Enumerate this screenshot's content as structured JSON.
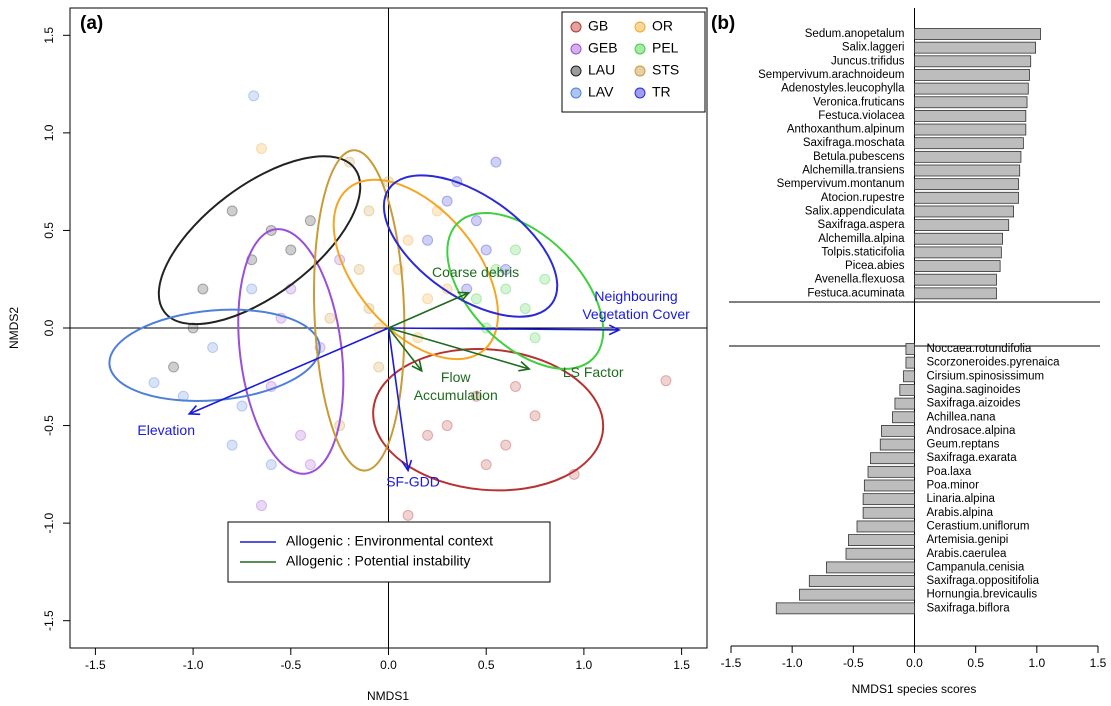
{
  "chart_data": [
    {
      "type": "scatter",
      "panel": "(a)",
      "x_label": "NMDS1",
      "y_label": "NMDS2",
      "xlim": [
        -1.63,
        1.63
      ],
      "ylim": [
        -1.64,
        1.64
      ],
      "xticks": [
        -1.5,
        {
          "value": -1,
          "label": "-1.0"
        },
        -0.5,
        {
          "value": 0,
          "label": "0.0"
        },
        0.5,
        {
          "value": 1,
          "label": "1.0"
        },
        1.5
      ],
      "yticks": [
        -1.5,
        {
          "value": -1,
          "label": "-1.0"
        },
        -0.5,
        {
          "value": 0,
          "label": "0.0"
        },
        0.5,
        {
          "value": 1,
          "label": "1.0"
        },
        1.5
      ],
      "series": [
        {
          "name": "GB",
          "color": "#b83232",
          "x": [
            0.3,
            0.45,
            0.6,
            0.75,
            0.5,
            0.2,
            0.95,
            0.65,
            1.42,
            0.1
          ],
          "y": [
            -0.5,
            -0.35,
            -0.6,
            -0.45,
            -0.7,
            -0.55,
            -0.75,
            -0.3,
            -0.27,
            -0.96
          ],
          "ellipse": {
            "cx": 0.51,
            "cy": -0.47,
            "rx": 0.59,
            "ry": 0.36,
            "angle": -5
          }
        },
        {
          "name": "GEB",
          "color": "#9b4fd6",
          "x": [
            -0.5,
            -0.35,
            -0.6,
            -0.45,
            -0.25,
            -0.55,
            -0.4,
            -0.65
          ],
          "y": [
            0.2,
            -0.1,
            -0.3,
            -0.55,
            0.35,
            0.05,
            -0.7,
            -0.91
          ],
          "ellipse": {
            "cx": -0.5,
            "cy": -0.12,
            "rx": 0.63,
            "ry": 0.26,
            "angle": 97
          }
        },
        {
          "name": "LAU",
          "color": "#222222",
          "x": [
            -0.8,
            -0.6,
            -0.4,
            -0.95,
            -0.7,
            -1.0,
            -0.5,
            -1.1
          ],
          "y": [
            0.6,
            0.5,
            0.55,
            0.2,
            0.35,
            0.0,
            0.4,
            -0.2
          ],
          "ellipse": {
            "cx": -0.66,
            "cy": 0.45,
            "rx": 0.61,
            "ry": 0.28,
            "angle": 37
          }
        },
        {
          "name": "LAV",
          "color": "#4f7fd9",
          "x": [
            -1.2,
            -0.9,
            -0.75,
            -1.05,
            -0.7,
            -0.6,
            -0.8,
            -0.69
          ],
          "y": [
            -0.28,
            -0.1,
            -0.4,
            -0.35,
            0.2,
            -0.7,
            -0.6,
            1.19
          ],
          "ellipse": {
            "cx": -0.89,
            "cy": -0.14,
            "rx": 0.54,
            "ry": 0.23,
            "angle": 5
          }
        },
        {
          "name": "OR",
          "color": "#f5a623",
          "x": [
            0.05,
            0.2,
            0.1,
            -0.05,
            0.3,
            0.25,
            -0.65,
            0.15
          ],
          "y": [
            0.3,
            0.15,
            0.45,
            0.0,
            0.2,
            0.6,
            0.92,
            -0.05
          ],
          "ellipse": {
            "cx": 0.14,
            "cy": 0.3,
            "rx": 0.54,
            "ry": 0.31,
            "angle": -50
          }
        },
        {
          "name": "PEL",
          "color": "#3fcf3f",
          "x": [
            0.6,
            0.7,
            0.55,
            0.8,
            0.5,
            0.65,
            0.45,
            0.75
          ],
          "y": [
            0.2,
            0.1,
            0.3,
            0.25,
            0.0,
            0.4,
            0.15,
            -0.05
          ],
          "ellipse": {
            "cx": 0.7,
            "cy": 0.19,
            "rx": 0.49,
            "ry": 0.28,
            "angle": -45
          }
        },
        {
          "name": "STS",
          "color": "#c89a38",
          "x": [
            -0.2,
            -0.1,
            -0.15,
            -0.05,
            -0.25,
            -0.1,
            0.0,
            -0.3
          ],
          "y": [
            0.85,
            0.6,
            0.3,
            -0.2,
            -0.5,
            0.1,
            0.75,
            0.05
          ],
          "ellipse": {
            "cx": -0.15,
            "cy": 0.09,
            "rx": 0.82,
            "ry": 0.23,
            "angle": 92
          }
        },
        {
          "name": "TR",
          "color": "#2a2ad8",
          "x": [
            0.3,
            0.45,
            0.5,
            0.6,
            0.35,
            0.2,
            0.55,
            0.4
          ],
          "y": [
            0.65,
            0.55,
            0.4,
            0.3,
            0.75,
            0.45,
            0.85,
            0.2
          ],
          "ellipse": {
            "cx": 0.42,
            "cy": 0.42,
            "rx": 0.51,
            "ry": 0.26,
            "angle": -35
          }
        }
      ],
      "vector_groups": [
        {
          "name": "Allogenic : Environmental context",
          "color": "#1a1adc",
          "vectors": [
            {
              "label": [
                "Elevation"
              ],
              "x": -1.02,
              "y": -0.44
            },
            {
              "label": [
                "SF-GDD"
              ],
              "x": 0.1,
              "y": -0.73
            },
            {
              "label": [
                "Neighbouring",
                "Vegetation Cover"
              ],
              "x": 1.18,
              "y": -0.01
            }
          ]
        },
        {
          "name": "Allogenic : Potential instability",
          "color": "#1e6b1e",
          "vectors": [
            {
              "label": [
                "Coarse debris"
              ],
              "x": 0.41,
              "y": 0.18
            },
            {
              "label": [
                "Flow",
                "Accumulation"
              ],
              "x": 0.17,
              "y": -0.22
            },
            {
              "label": [
                "LS Factor"
              ],
              "x": 0.72,
              "y": -0.21
            }
          ]
        }
      ]
    },
    {
      "type": "bar",
      "orientation": "horizontal",
      "panel": "(b)",
      "x_label": "NMDS1 species scores",
      "xlim": [
        -1.5,
        1.5
      ],
      "xticks": [
        -1.5,
        {
          "value": -1,
          "label": "-1.0"
        },
        -0.5,
        {
          "value": 0,
          "label": "0.0"
        },
        0.5,
        {
          "value": 1,
          "label": "1.0"
        },
        1.5
      ],
      "color": "#bdbdbd",
      "groups": [
        {
          "categories": [
            "Sedum.anopetalum",
            "Salix.laggeri",
            "Juncus.trifidus",
            "Sempervivum.arachnoideum",
            "Adenostyles.leucophylla",
            "Veronica.fruticans",
            "Festuca.violacea",
            "Anthoxanthum.alpinum",
            "Saxifraga.moschata",
            "Betula.pubescens",
            "Alchemilla.transiens",
            "Sempervivum.montanum",
            "Atocion.rupestre",
            "Salix.appendiculata",
            "Saxifraga.aspera",
            "Alchemilla.alpina",
            "Tolpis.staticifolia",
            "Picea.abies",
            "Avenella.flexuosa",
            "Festuca.acuminata"
          ],
          "values": [
            1.03,
            0.99,
            0.95,
            0.94,
            0.93,
            0.92,
            0.91,
            0.91,
            0.89,
            0.87,
            0.86,
            0.85,
            0.85,
            0.81,
            0.77,
            0.72,
            0.71,
            0.7,
            0.67,
            0.67
          ]
        },
        {
          "categories": [
            "Noccaea.rotundifolia",
            "Scorzoneroides.pyrenaica",
            "Cirsium.spinosissimum",
            "Sagina.saginoides",
            "Saxifraga.aizoides",
            "Achillea.nana",
            "Androsace.alpina",
            "Geum.reptans",
            "Saxifraga.exarata",
            "Poa.laxa",
            "Poa.minor",
            "Linaria.alpina",
            "Arabis.alpina",
            "Cerastium.uniflorum",
            "Artemisia.genipi",
            "Arabis.caerulea",
            "Campanula.cenisia",
            "Saxifraga.oppositifolia",
            "Hornungia.brevicaulis",
            "Saxifraga.biflora"
          ],
          "values": [
            -0.07,
            -0.07,
            -0.09,
            -0.12,
            -0.16,
            -0.18,
            -0.27,
            -0.28,
            -0.36,
            -0.38,
            -0.41,
            -0.42,
            -0.42,
            -0.47,
            -0.54,
            -0.56,
            -0.72,
            -0.86,
            -0.94,
            -1.13
          ]
        }
      ]
    }
  ]
}
